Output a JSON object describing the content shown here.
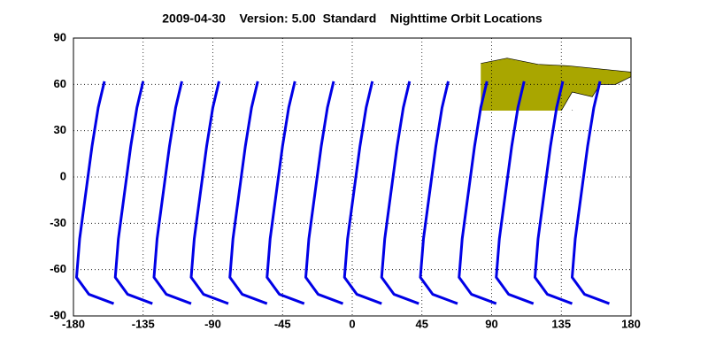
{
  "chart_data": {
    "type": "line",
    "title": "2009-04-30    Version: 5.00  Standard    Nighttime Orbit Locations",
    "xlim": [
      -180,
      180
    ],
    "ylim": [
      -90,
      90
    ],
    "xticks": [
      -180,
      -135,
      -90,
      -45,
      0,
      45,
      90,
      135,
      180
    ],
    "yticks": [
      -90,
      -60,
      -30,
      0,
      30,
      60,
      90
    ],
    "grid": true,
    "color": "#0000e6",
    "land_color": "#a9a600",
    "series": [
      {
        "x": [
          -154,
          -170,
          -178,
          -176,
          -172,
          -168,
          -164,
          -160
        ],
        "values": [
          -82,
          -76,
          -65,
          -40,
          -10,
          20,
          45,
          62
        ]
      },
      {
        "x": [
          -129,
          -145,
          -153,
          -151,
          -147,
          -143,
          -139,
          -135
        ],
        "values": [
          -82,
          -76,
          -65,
          -40,
          -10,
          20,
          45,
          62
        ]
      },
      {
        "x": [
          -104,
          -120,
          -128,
          -126,
          -122,
          -118,
          -114,
          -110
        ],
        "values": [
          -82,
          -76,
          -65,
          -40,
          -10,
          20,
          45,
          62
        ]
      },
      {
        "x": [
          -80,
          -96,
          -104,
          -102,
          -98,
          -94,
          -90,
          -86
        ],
        "values": [
          -82,
          -76,
          -65,
          -40,
          -10,
          20,
          45,
          62
        ]
      },
      {
        "x": [
          -55,
          -71,
          -79,
          -77,
          -73,
          -69,
          -65,
          -61
        ],
        "values": [
          -82,
          -76,
          -65,
          -40,
          -10,
          20,
          45,
          62
        ]
      },
      {
        "x": [
          -31,
          -47,
          -55,
          -53,
          -49,
          -45,
          -41,
          -37
        ],
        "values": [
          -82,
          -76,
          -65,
          -40,
          -10,
          20,
          45,
          62
        ]
      },
      {
        "x": [
          -6,
          -22,
          -30,
          -28,
          -24,
          -20,
          -16,
          -12
        ],
        "values": [
          -82,
          -76,
          -65,
          -40,
          -10,
          20,
          45,
          62
        ]
      },
      {
        "x": [
          19,
          3,
          -5,
          -3,
          1,
          5,
          9,
          13
        ],
        "values": [
          -82,
          -76,
          -65,
          -40,
          -10,
          20,
          45,
          62
        ]
      },
      {
        "x": [
          43,
          27,
          19,
          21,
          25,
          29,
          33,
          37
        ],
        "values": [
          -82,
          -76,
          -65,
          -40,
          -10,
          20,
          45,
          62
        ]
      },
      {
        "x": [
          68,
          52,
          44,
          46,
          50,
          54,
          58,
          62
        ],
        "values": [
          -82,
          -76,
          -65,
          -40,
          -10,
          20,
          45,
          62
        ]
      },
      {
        "x": [
          93,
          77,
          69,
          71,
          75,
          79,
          83,
          87
        ],
        "values": [
          -82,
          -76,
          -65,
          -40,
          -10,
          20,
          45,
          62
        ]
      },
      {
        "x": [
          117,
          101,
          93,
          95,
          99,
          103,
          107,
          111
        ],
        "values": [
          -82,
          -76,
          -65,
          -40,
          -10,
          20,
          45,
          62
        ]
      },
      {
        "x": [
          142,
          126,
          118,
          120,
          124,
          128,
          132,
          136
        ],
        "values": [
          -82,
          -76,
          -65,
          -40,
          -10,
          20,
          45,
          62
        ]
      },
      {
        "x": [
          166,
          150,
          142,
          144,
          148,
          152,
          156,
          160
        ],
        "values": [
          -82,
          -76,
          -65,
          -40,
          -10,
          20,
          45,
          62
        ]
      }
    ]
  }
}
